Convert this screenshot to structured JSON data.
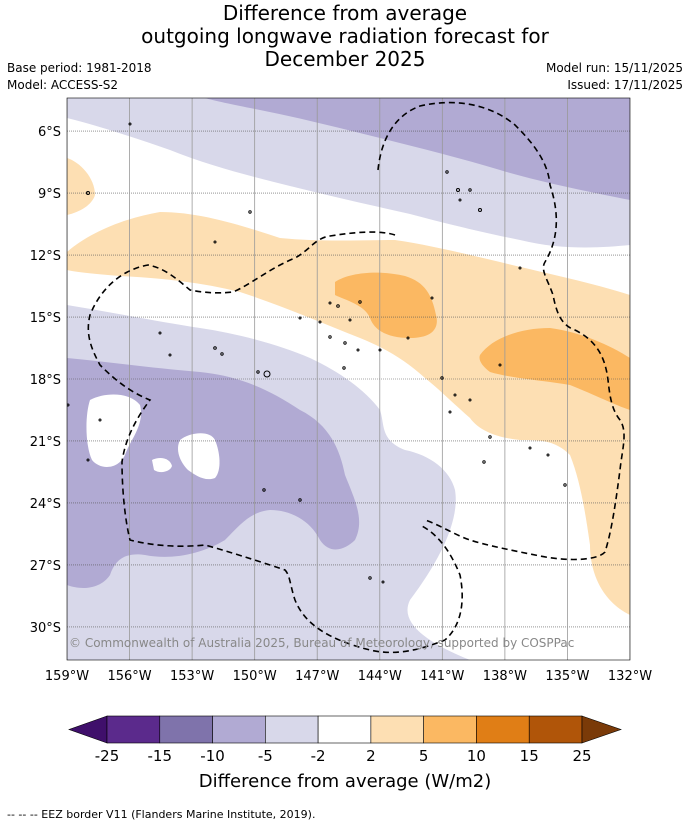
{
  "title": {
    "line1": "Difference from average",
    "line2": "outgoing longwave radiation forecast for",
    "line3": "December 2025"
  },
  "meta": {
    "base_period": "Base period: 1981-2018",
    "model": "Model: ACCESS-S2",
    "model_run": "Model run: 15/11/2025",
    "issued": "Issued: 17/11/2025"
  },
  "map": {
    "lat_labels": [
      "6°S",
      "9°S",
      "12°S",
      "15°S",
      "18°S",
      "21°S",
      "24°S",
      "27°S",
      "30°S"
    ],
    "lat_values": [
      6,
      9,
      12,
      15,
      18,
      21,
      24,
      27,
      30
    ],
    "lon_labels": [
      "159°W",
      "156°W",
      "153°W",
      "150°W",
      "147°W",
      "144°W",
      "141°W",
      "138°W",
      "135°W",
      "132°W"
    ],
    "lon_values": [
      159,
      156,
      153,
      150,
      147,
      144,
      141,
      138,
      135,
      132
    ],
    "extent": {
      "lon_west": 159,
      "lon_east": 132,
      "lat_north": 4.4,
      "lat_south": 31.6
    },
    "copyright": "© Commonwealth of Australia 2025, Bureau of Meteorology, supported by COSPPac"
  },
  "colorbar": {
    "label": "Difference from average (W/m2)",
    "tick_labels": [
      "-25",
      "-15",
      "-10",
      "-5",
      "-2",
      "2",
      "5",
      "10",
      "15",
      "25"
    ],
    "colors": [
      "#3f0f6b",
      "#5b2a8c",
      "#7f73ab",
      "#b1aad3",
      "#d8d8ea",
      "#ffffff",
      "#fddfb3",
      "#fbb862",
      "#e07e16",
      "#b05509",
      "#7a3a08"
    ]
  },
  "footer": "--  --  -- EEZ border V11 (Flanders Marine Institute, 2019)."
}
